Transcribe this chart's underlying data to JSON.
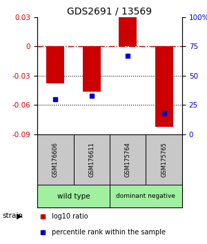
{
  "title": "GDS2691 / 13569",
  "samples": [
    "GSM176606",
    "GSM176611",
    "GSM175764",
    "GSM175765"
  ],
  "log10_ratio": [
    -0.038,
    -0.046,
    0.03,
    -0.082
  ],
  "percentile_rank": [
    30,
    33,
    67,
    18
  ],
  "groups": [
    {
      "label": "wild type",
      "span": [
        0,
        2
      ],
      "color": "#a0f0a0"
    },
    {
      "label": "dominant negative",
      "span": [
        2,
        4
      ],
      "color": "#a0f0a0"
    }
  ],
  "group_label": "strain",
  "ylim_left": [
    -0.09,
    0.03
  ],
  "ylim_right": [
    0,
    100
  ],
  "yticks_left": [
    -0.09,
    -0.06,
    -0.03,
    0,
    0.03
  ],
  "ytick_labels_left": [
    "-0.09",
    "-0.06",
    "-0.03",
    "0",
    "0.03"
  ],
  "yticks_right": [
    0,
    25,
    50,
    75,
    100
  ],
  "ytick_labels_right": [
    "0",
    "25",
    "50",
    "75",
    "100%"
  ],
  "bar_color": "#CC0000",
  "dot_color": "#0000CC",
  "zero_line_color": "#CC0000",
  "grid_color": "#000000",
  "bg_color": "#ffffff",
  "sample_box_color": "#c8c8c8",
  "bar_width": 0.5
}
